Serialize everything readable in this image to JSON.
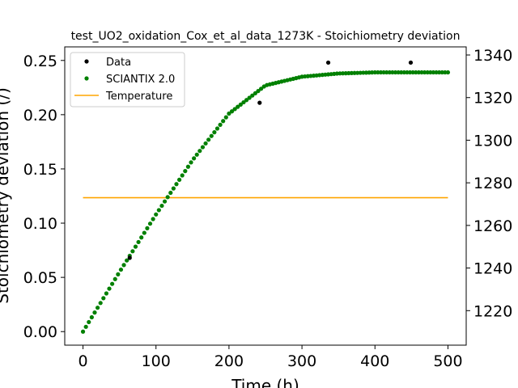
{
  "chart_data": {
    "type": "scatter",
    "title": "test_UO2_oxidation_Cox_et_al_data_1273K - Stoichiometry deviation",
    "xlabel": "Time (h)",
    "ylabel": "Stoichiometry deviation (/)",
    "y2label": "",
    "xlim": [
      -25,
      525
    ],
    "ylim": [
      -0.0125,
      0.2625
    ],
    "y2lim": [
      1203.8,
      1343.8
    ],
    "xticks": [
      "0",
      "100",
      "200",
      "300",
      "400",
      "500"
    ],
    "yticks": [
      "0.00",
      "0.05",
      "0.10",
      "0.15",
      "0.20",
      "0.25"
    ],
    "y2ticks": [
      "1220",
      "1240",
      "1260",
      "1280",
      "1300",
      "1320",
      "1340"
    ],
    "legend_position": "upper-left",
    "series": [
      {
        "name": "Data",
        "style": "marker",
        "color": "#000000",
        "axis": "left",
        "x": [
          64,
          242,
          336,
          449
        ],
        "y": [
          0.068,
          0.211,
          0.248,
          0.248
        ]
      },
      {
        "name": "SCIANTIX 2.0",
        "style": "marker",
        "color": "#008000",
        "axis": "left",
        "generator": {
          "x_start": 0,
          "x_end": 500,
          "count": 126,
          "knots_x": [
            0,
            50,
            100,
            150,
            200,
            250,
            300,
            350,
            400,
            450,
            500
          ],
          "knots_y": [
            0.0,
            0.055,
            0.108,
            0.158,
            0.201,
            0.227,
            0.235,
            0.238,
            0.239,
            0.239,
            0.239
          ]
        }
      },
      {
        "name": "Temperature",
        "style": "line",
        "color": "#FFA500",
        "axis": "right",
        "x": [
          0,
          500
        ],
        "y": [
          1273,
          1273
        ]
      }
    ]
  }
}
